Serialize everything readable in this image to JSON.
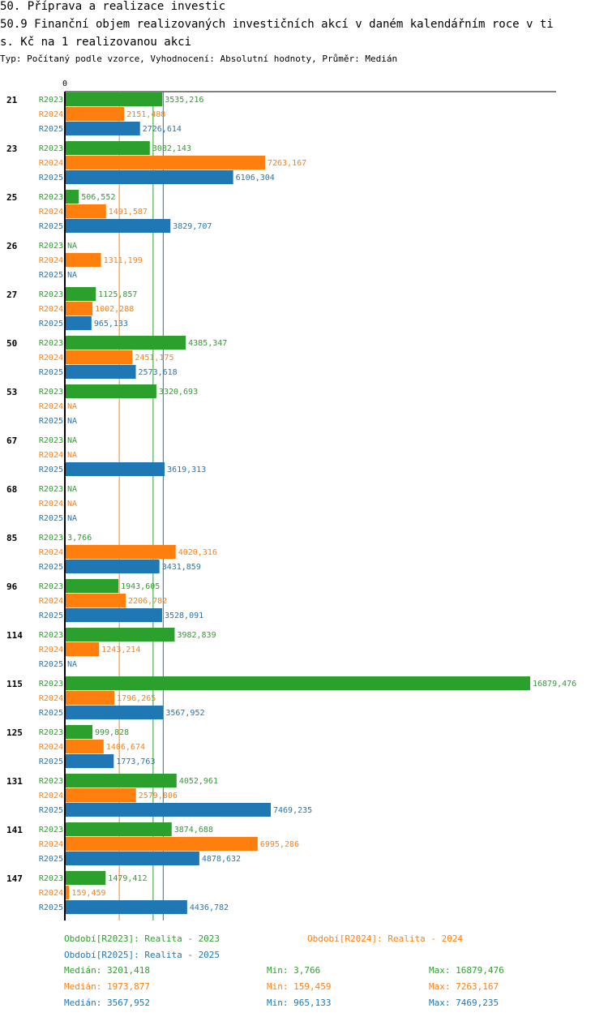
{
  "header": {
    "title_line1": "50. Příprava a realizace investic",
    "title_line2": "50.9 Finanční objem realizovaných investičních akcí v daném kalendářním roce v ti",
    "title_line3": "s. Kč na 1 realizovanou akci",
    "subtitle": "Typ: Počítaný podle vzorce, Vyhodnocení: Absolutní hodnoty, Průměr: Medián"
  },
  "chart_data": {
    "type": "bar",
    "orientation": "horizontal",
    "axis_zero_label": "0",
    "xlim": [
      0,
      16879.476
    ],
    "series": [
      {
        "name": "R2023",
        "color": "#2ca02c"
      },
      {
        "name": "R2024",
        "color": "#ff7f0e"
      },
      {
        "name": "R2025",
        "color": "#1f77b4"
      }
    ],
    "categories": [
      "21",
      "23",
      "25",
      "26",
      "27",
      "50",
      "53",
      "67",
      "68",
      "85",
      "96",
      "114",
      "115",
      "125",
      "131",
      "141",
      "147"
    ],
    "values": [
      [
        3535.216,
        2151.488,
        2726.614
      ],
      [
        3082.143,
        7263.167,
        6106.304
      ],
      [
        506.552,
        1491.587,
        3829.707
      ],
      [
        null,
        1311.199,
        null
      ],
      [
        1125.857,
        1002.288,
        965.133
      ],
      [
        4385.347,
        2451.175,
        2573.618
      ],
      [
        3320.693,
        null,
        null
      ],
      [
        null,
        null,
        3619.313
      ],
      [
        null,
        null,
        null
      ],
      [
        3.766,
        4020.316,
        3431.859
      ],
      [
        1943.605,
        2206.782,
        3528.091
      ],
      [
        3982.839,
        1243.214,
        null
      ],
      [
        16879.476,
        1796.265,
        3567.952
      ],
      [
        999.828,
        1406.674,
        1773.763
      ],
      [
        4052.961,
        2579.806,
        7469.235
      ],
      [
        3874.688,
        6995.286,
        4878.632
      ],
      [
        1479.412,
        159.459,
        4436.782
      ]
    ],
    "labels": [
      [
        "3535,216",
        "2151,488",
        "2726,614"
      ],
      [
        "3082,143",
        "7263,167",
        "6106,304"
      ],
      [
        "506,552",
        "1491,587",
        "3829,707"
      ],
      [
        "NA",
        "1311,199",
        "NA"
      ],
      [
        "1125,857",
        "1002,288",
        "965,133"
      ],
      [
        "4385,347",
        "2451,175",
        "2573,618"
      ],
      [
        "3320,693",
        "NA",
        "NA"
      ],
      [
        "NA",
        "NA",
        "3619,313"
      ],
      [
        "NA",
        "NA",
        "NA"
      ],
      [
        "3,766",
        "4020,316",
        "3431,859"
      ],
      [
        "1943,605",
        "2206,782",
        "3528,091"
      ],
      [
        "3982,839",
        "1243,214",
        "NA"
      ],
      [
        "16879,476",
        "1796,265",
        "3567,952"
      ],
      [
        "999,828",
        "1406,674",
        "1773,763"
      ],
      [
        "4052,961",
        "2579,806",
        "7469,235"
      ],
      [
        "3874,688",
        "6995,286",
        "4878,632"
      ],
      [
        "1479,412",
        "159,459",
        "4436,782"
      ]
    ],
    "medians": [
      3201.418,
      1973.877,
      3567.952
    ]
  },
  "legend": {
    "r2023_label": "Období[R2023]: Realita - 2023",
    "r2024_label": "Období[R2024]: Realita - 2024",
    "r2025_label": "Období[R2025]: Realita - 2025",
    "r2023_median": "Medián: 3201,418",
    "r2023_min": "Min: 3,766",
    "r2023_max": "Max: 16879,476",
    "r2024_median": "Medián: 1973,877",
    "r2024_min": "Min: 159,459",
    "r2024_max": "Max: 7263,167",
    "r2025_median": "Medián: 3567,952",
    "r2025_min": "Min: 965,133",
    "r2025_max": "Max: 7469,235"
  },
  "colors": {
    "r2023": "#2ca02c",
    "r2024": "#ff7f0e",
    "r2025": "#1f77b4"
  }
}
